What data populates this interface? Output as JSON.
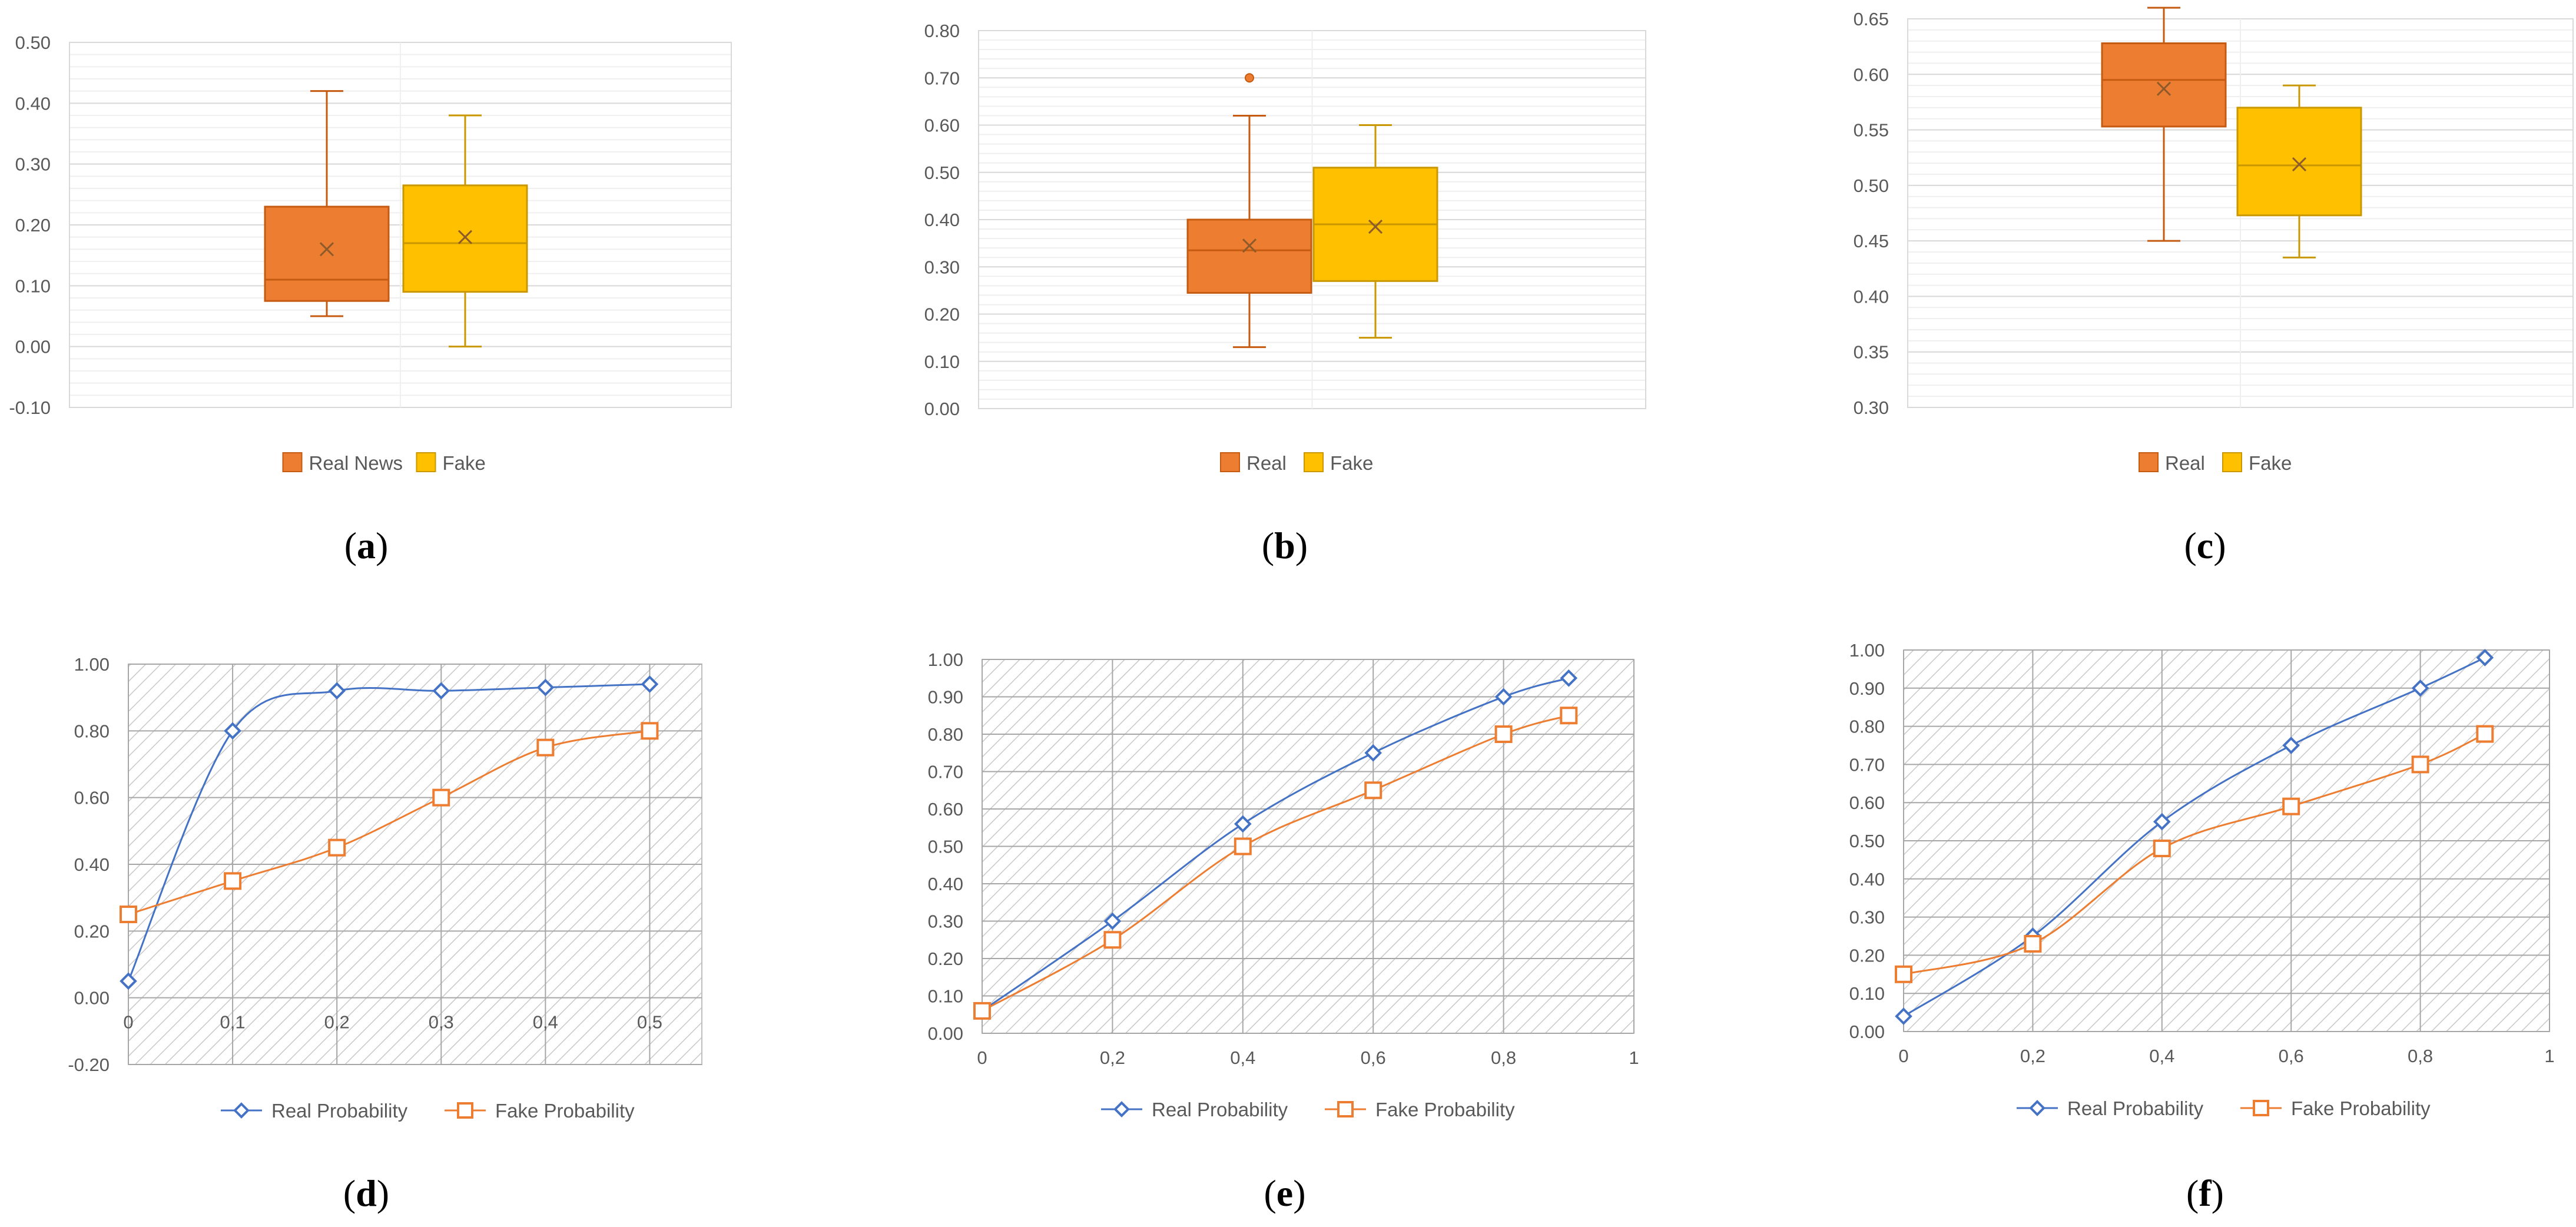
{
  "colors": {
    "real_box": "#ED7D31",
    "fake_box": "#FFC000",
    "real_line": "#4472C4",
    "fake_line": "#ED7D31",
    "grid_major": "#D9D9D9",
    "grid_minor": "#EFEFEF",
    "text": "#595959"
  },
  "chart_data": [
    {
      "panel": "a",
      "caption_letter": "a",
      "type": "box",
      "ylim": [
        -0.1,
        0.5
      ],
      "yticks": [
        "-0.10",
        "0.00",
        "0.10",
        "0.20",
        "0.30",
        "0.40",
        "0.50"
      ],
      "legend": [
        "Real News",
        "Fake"
      ],
      "series": [
        {
          "name": "Real News",
          "min": 0.05,
          "q1": 0.075,
          "median": 0.11,
          "q3": 0.23,
          "max": 0.42,
          "mean": 0.16,
          "outliers": []
        },
        {
          "name": "Fake",
          "min": 0.0,
          "q1": 0.09,
          "median": 0.17,
          "q3": 0.265,
          "max": 0.38,
          "mean": 0.18,
          "outliers": []
        }
      ]
    },
    {
      "panel": "b",
      "caption_letter": "b",
      "type": "box",
      "ylim": [
        0.0,
        0.8
      ],
      "yticks": [
        "0.00",
        "0.10",
        "0.20",
        "0.30",
        "0.40",
        "0.50",
        "0.60",
        "0.70",
        "0.80"
      ],
      "legend": [
        "Real",
        "Fake"
      ],
      "series": [
        {
          "name": "Real",
          "min": 0.13,
          "q1": 0.245,
          "median": 0.335,
          "q3": 0.4,
          "max": 0.62,
          "mean": 0.345,
          "outliers": [
            0.7
          ]
        },
        {
          "name": "Fake",
          "min": 0.15,
          "q1": 0.27,
          "median": 0.39,
          "q3": 0.51,
          "max": 0.6,
          "mean": 0.385,
          "outliers": []
        }
      ]
    },
    {
      "panel": "c",
      "caption_letter": "c",
      "type": "box",
      "ylim": [
        0.3,
        0.65
      ],
      "yticks": [
        "0.30",
        "0.35",
        "0.40",
        "0.45",
        "0.50",
        "0.55",
        "0.60",
        "0.65"
      ],
      "legend": [
        "Real",
        "Fake"
      ],
      "series": [
        {
          "name": "Real",
          "min": 0.45,
          "q1": 0.553,
          "median": 0.595,
          "q3": 0.628,
          "max": 0.66,
          "mean": 0.587,
          "outliers": []
        },
        {
          "name": "Fake",
          "min": 0.435,
          "q1": 0.473,
          "median": 0.518,
          "q3": 0.57,
          "max": 0.59,
          "mean": 0.519,
          "outliers": []
        }
      ]
    },
    {
      "panel": "d",
      "caption_letter": "d",
      "type": "line",
      "x": [
        0,
        0.1,
        0.2,
        0.3,
        0.4,
        0.5
      ],
      "xticks": [
        "0",
        "0,1",
        "0,2",
        "0,3",
        "0,4",
        "0,5"
      ],
      "xlim": [
        0,
        0.55
      ],
      "ylim": [
        -0.2,
        1.0
      ],
      "yticks": [
        "-0.20",
        "0.00",
        "0.20",
        "0.40",
        "0.60",
        "0.80",
        "1.00"
      ],
      "series": [
        {
          "name": "Real Probability",
          "values": [
            0.05,
            0.8,
            0.92,
            0.92,
            0.93,
            0.94
          ]
        },
        {
          "name": "Fake Probability",
          "values": [
            0.25,
            0.35,
            0.45,
            0.6,
            0.75,
            0.8
          ]
        }
      ]
    },
    {
      "panel": "e",
      "caption_letter": "e",
      "type": "line",
      "x": [
        0,
        0.2,
        0.4,
        0.6,
        0.8,
        0.9
      ],
      "xticks": [
        "0",
        "0,2",
        "0,4",
        "0,6",
        "0,8",
        "1"
      ],
      "xtick_values": [
        0,
        0.2,
        0.4,
        0.6,
        0.8,
        1.0
      ],
      "xlim": [
        0,
        1
      ],
      "ylim": [
        0.0,
        1.0
      ],
      "yticks": [
        "0.00",
        "0.10",
        "0.20",
        "0.30",
        "0.40",
        "0.50",
        "0.60",
        "0.70",
        "0.80",
        "0.90",
        "1.00"
      ],
      "series": [
        {
          "name": "Real Probability",
          "values": [
            0.06,
            0.3,
            0.56,
            0.75,
            0.9,
            0.95
          ]
        },
        {
          "name": "Fake Probability",
          "values": [
            0.06,
            0.25,
            0.5,
            0.65,
            0.8,
            0.85
          ]
        }
      ]
    },
    {
      "panel": "f",
      "caption_letter": "f",
      "type": "line",
      "x": [
        0,
        0.2,
        0.4,
        0.6,
        0.8,
        0.9
      ],
      "xticks": [
        "0",
        "0,2",
        "0,4",
        "0,6",
        "0,8",
        "1"
      ],
      "xtick_values": [
        0,
        0.2,
        0.4,
        0.6,
        0.8,
        1.0
      ],
      "xlim": [
        0,
        1
      ],
      "ylim": [
        0.0,
        1.0
      ],
      "yticks": [
        "0.00",
        "0.10",
        "0.20",
        "0.30",
        "0.40",
        "0.50",
        "0.60",
        "0.70",
        "0.80",
        "0.90",
        "1.00"
      ],
      "series": [
        {
          "name": "Real Probability",
          "values": [
            0.04,
            0.25,
            0.55,
            0.75,
            0.9,
            0.98
          ]
        },
        {
          "name": "Fake Probability",
          "values": [
            0.15,
            0.23,
            0.48,
            0.59,
            0.7,
            0.78
          ]
        }
      ]
    }
  ]
}
